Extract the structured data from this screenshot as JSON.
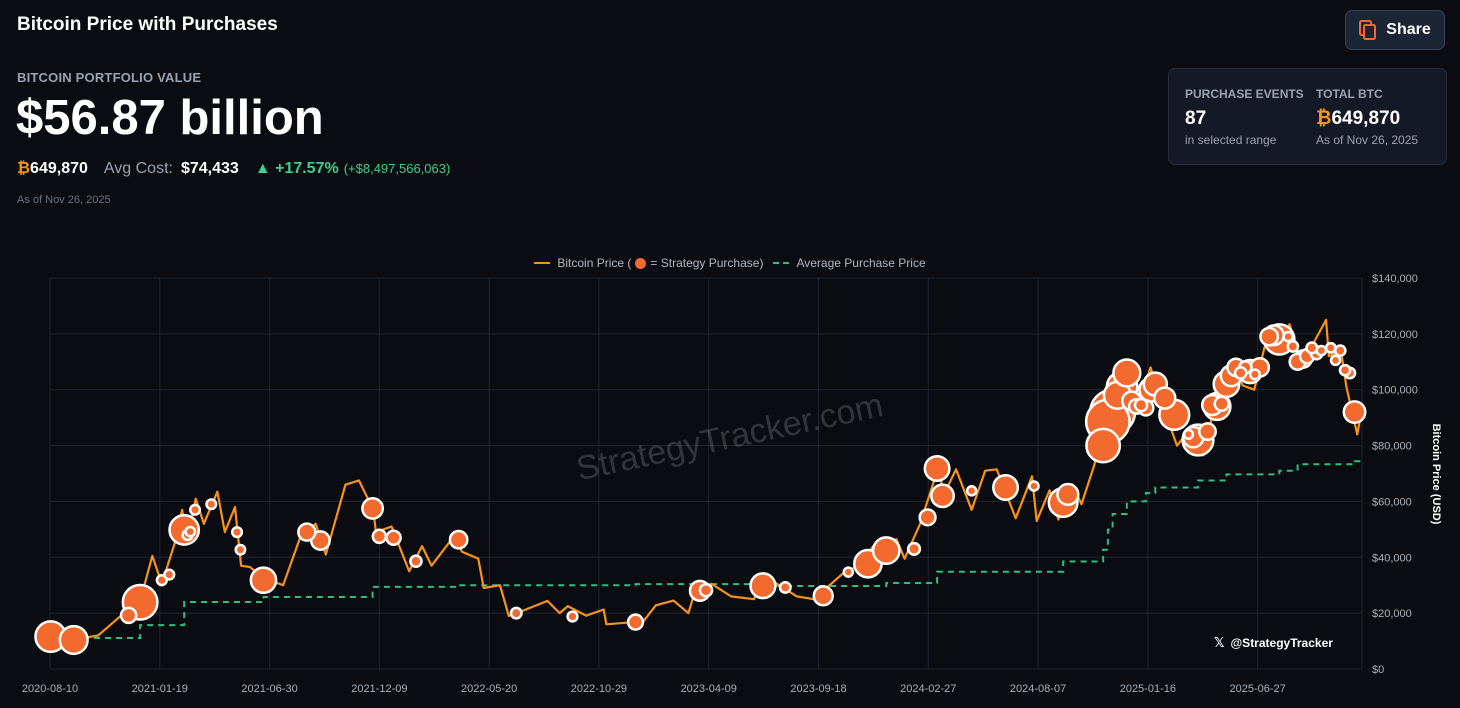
{
  "header": {
    "title": "Bitcoin Price with Purchases",
    "share_label": "Share",
    "share_icon": "copy-icon"
  },
  "summary": {
    "label": "BITCOIN PORTFOLIO VALUE",
    "value": "$56.87 billion",
    "btc_symbol": "₿",
    "btc_holdings": "649,870",
    "avg_cost_label": "Avg Cost:",
    "avg_cost": "$74,433",
    "change_pct": "+17.57%",
    "change_abs": "(+$8,497,566,063)",
    "as_of": "As of Nov 26, 2025"
  },
  "stats_card": {
    "purchase_events_label": "PURCHASE EVENTS",
    "purchase_events": "87",
    "purchase_events_sub": "in selected range",
    "total_btc_label": "TOTAL BTC",
    "total_btc_symbol": "₿",
    "total_btc": "649,870",
    "total_btc_sub": "As of Nov 26, 2025"
  },
  "colors": {
    "background": "#0a0c12",
    "price_line": "#f7931a",
    "purchase_marker": "#f26a2e",
    "average_line": "#2ebd85",
    "positive": "#3ecf8e"
  },
  "chart_data": {
    "type": "line",
    "legend": {
      "position": "top",
      "price_a": "Bitcoin Price (",
      "price_b": "= Strategy Purchase)",
      "average": "Average Purchase Price"
    },
    "ylabel": "Bitcoin Price (USD)",
    "ylim": [
      0,
      140000
    ],
    "xlim": [
      "2020-08-10",
      "2025-11-28"
    ],
    "grid": true,
    "x_ticks": [
      "2020-08-10",
      "2021-01-19",
      "2021-06-30",
      "2021-12-09",
      "2022-05-20",
      "2022-10-29",
      "2023-04-09",
      "2023-09-18",
      "2024-02-27",
      "2024-08-07",
      "2025-01-16",
      "2025-06-27"
    ],
    "y_ticks": [
      "$0",
      "$20,000",
      "$40,000",
      "$60,000",
      "$80,000",
      "$100,000",
      "$120,000",
      "$140,000"
    ],
    "watermark": "StrategyTracker.com",
    "handle": "@StrategyTracker",
    "price": [
      [
        "2020-08-10",
        11500
      ],
      [
        "2020-09-05",
        10200
      ],
      [
        "2020-10-20",
        12000
      ],
      [
        "2020-11-20",
        18500
      ],
      [
        "2020-12-20",
        23500
      ],
      [
        "2021-01-08",
        40500
      ],
      [
        "2021-01-22",
        30500
      ],
      [
        "2021-02-10",
        45000
      ],
      [
        "2021-02-21",
        57000
      ],
      [
        "2021-02-28",
        45000
      ],
      [
        "2021-03-13",
        61000
      ],
      [
        "2021-03-25",
        52000
      ],
      [
        "2021-04-14",
        63500
      ],
      [
        "2021-04-25",
        49000
      ],
      [
        "2021-05-10",
        58000
      ],
      [
        "2021-05-19",
        37000
      ],
      [
        "2021-06-01",
        36500
      ],
      [
        "2021-06-22",
        32500
      ],
      [
        "2021-07-20",
        30000
      ],
      [
        "2021-08-14",
        47000
      ],
      [
        "2021-09-06",
        52000
      ],
      [
        "2021-09-21",
        41000
      ],
      [
        "2021-10-20",
        66000
      ],
      [
        "2021-11-09",
        67500
      ],
      [
        "2021-11-30",
        57000
      ],
      [
        "2021-12-04",
        49000
      ],
      [
        "2021-12-27",
        51000
      ],
      [
        "2022-01-22",
        35000
      ],
      [
        "2022-02-10",
        44000
      ],
      [
        "2022-02-24",
        37000
      ],
      [
        "2022-03-29",
        47500
      ],
      [
        "2022-04-10",
        42000
      ],
      [
        "2022-05-04",
        39500
      ],
      [
        "2022-05-12",
        29000
      ],
      [
        "2022-06-05",
        30000
      ],
      [
        "2022-06-18",
        19000
      ],
      [
        "2022-07-10",
        21000
      ],
      [
        "2022-08-14",
        24400
      ],
      [
        "2022-09-01",
        20000
      ],
      [
        "2022-09-13",
        22500
      ],
      [
        "2022-10-10",
        19100
      ],
      [
        "2022-11-05",
        21300
      ],
      [
        "2022-11-09",
        16000
      ],
      [
        "2022-12-20",
        16800
      ],
      [
        "2023-01-01",
        16600
      ],
      [
        "2023-01-21",
        22800
      ],
      [
        "2023-02-16",
        24500
      ],
      [
        "2023-03-10",
        20000
      ],
      [
        "2023-03-20",
        28000
      ],
      [
        "2023-04-13",
        30500
      ],
      [
        "2023-05-12",
        26000
      ],
      [
        "2023-06-15",
        25000
      ],
      [
        "2023-06-23",
        30700
      ],
      [
        "2023-07-13",
        31400
      ],
      [
        "2023-08-17",
        26000
      ],
      [
        "2023-09-11",
        25000
      ],
      [
        "2023-10-23",
        34000
      ],
      [
        "2023-11-15",
        37000
      ],
      [
        "2023-12-08",
        44000
      ],
      [
        "2024-01-11",
        46500
      ],
      [
        "2024-01-23",
        39500
      ],
      [
        "2024-02-15",
        52000
      ],
      [
        "2024-03-14",
        73000
      ],
      [
        "2024-03-20",
        62000
      ],
      [
        "2024-04-08",
        71500
      ],
      [
        "2024-05-01",
        57000
      ],
      [
        "2024-05-21",
        71000
      ],
      [
        "2024-06-07",
        71500
      ],
      [
        "2024-07-05",
        54000
      ],
      [
        "2024-07-29",
        69000
      ],
      [
        "2024-08-05",
        53000
      ],
      [
        "2024-08-24",
        64000
      ],
      [
        "2024-09-06",
        53500
      ],
      [
        "2024-09-27",
        66000
      ],
      [
        "2024-10-10",
        59000
      ],
      [
        "2024-10-29",
        73000
      ],
      [
        "2024-11-13",
        90000
      ],
      [
        "2024-11-22",
        99000
      ],
      [
        "2024-12-05",
        103000
      ],
      [
        "2024-12-17",
        107000
      ],
      [
        "2024-12-30",
        92000
      ],
      [
        "2025-01-20",
        108000
      ],
      [
        "2025-02-03",
        97000
      ],
      [
        "2025-02-28",
        80000
      ],
      [
        "2025-03-20",
        86000
      ],
      [
        "2025-04-08",
        76500
      ],
      [
        "2025-04-25",
        95000
      ],
      [
        "2025-05-22",
        111000
      ],
      [
        "2025-06-05",
        101500
      ],
      [
        "2025-06-22",
        100000
      ],
      [
        "2025-07-14",
        122000
      ],
      [
        "2025-08-02",
        113000
      ],
      [
        "2025-08-13",
        123500
      ],
      [
        "2025-09-01",
        108000
      ],
      [
        "2025-09-18",
        117000
      ],
      [
        "2025-10-06",
        125000
      ],
      [
        "2025-10-10",
        112000
      ],
      [
        "2025-10-28",
        114000
      ],
      [
        "2025-11-05",
        101000
      ],
      [
        "2025-11-21",
        84000
      ],
      [
        "2025-11-26",
        90500
      ]
    ],
    "average_purchase_price": [
      [
        "2020-08-10",
        11100
      ],
      [
        "2020-12-21",
        15700
      ],
      [
        "2021-02-24",
        24000
      ],
      [
        "2021-06-21",
        25800
      ],
      [
        "2021-11-29",
        29400
      ],
      [
        "2022-04-05",
        30000
      ],
      [
        "2022-12-22",
        30400
      ],
      [
        "2023-06-28",
        29700
      ],
      [
        "2023-12-27",
        30800
      ],
      [
        "2024-03-11",
        34800
      ],
      [
        "2024-09-13",
        38500
      ],
      [
        "2024-11-11",
        42700
      ],
      [
        "2024-11-18",
        49900
      ],
      [
        "2024-11-25",
        55500
      ],
      [
        "2024-12-16",
        60000
      ],
      [
        "2025-01-13",
        63000
      ],
      [
        "2025-01-27",
        65000
      ],
      [
        "2025-03-31",
        67500
      ],
      [
        "2025-05-12",
        69700
      ],
      [
        "2025-07-29",
        71000
      ],
      [
        "2025-08-25",
        73300
      ],
      [
        "2025-11-17",
        74400
      ]
    ],
    "purchases": [
      [
        "2020-08-11",
        11600,
        21454
      ],
      [
        "2020-09-14",
        10400,
        16796
      ],
      [
        "2020-12-04",
        19200,
        2574
      ],
      [
        "2020-12-21",
        23900,
        29646
      ],
      [
        "2021-01-22",
        31800,
        314
      ],
      [
        "2021-02-02",
        33800,
        295
      ],
      [
        "2021-02-24",
        49800,
        19452
      ],
      [
        "2021-03-01",
        48000,
        328
      ],
      [
        "2021-03-05",
        49200,
        205
      ],
      [
        "2021-03-12",
        57000,
        262
      ],
      [
        "2021-04-05",
        59000,
        253
      ],
      [
        "2021-05-13",
        49000,
        271
      ],
      [
        "2021-05-18",
        42700,
        229
      ],
      [
        "2021-06-21",
        31800,
        13005
      ],
      [
        "2021-08-24",
        49000,
        3907
      ],
      [
        "2021-09-13",
        46000,
        5050
      ],
      [
        "2021-11-29",
        57500,
        7002
      ],
      [
        "2021-12-09",
        47500,
        1434
      ],
      [
        "2021-12-30",
        47000,
        1914
      ],
      [
        "2022-02-01",
        38600,
        660
      ],
      [
        "2022-04-05",
        46300,
        4167
      ],
      [
        "2022-06-29",
        20000,
        480
      ],
      [
        "2022-09-20",
        18800,
        301
      ],
      [
        "2022-12-22",
        16800,
        2395
      ],
      [
        "2023-03-27",
        28000,
        6455
      ],
      [
        "2023-04-05",
        28200,
        1045
      ],
      [
        "2023-06-28",
        29800,
        12333
      ],
      [
        "2023-07-31",
        29200,
        467
      ],
      [
        "2023-09-25",
        26200,
        5445
      ],
      [
        "2023-11-01",
        34700,
        155
      ],
      [
        "2023-11-30",
        37700,
        16130
      ],
      [
        "2023-12-27",
        42400,
        14620
      ],
      [
        "2024-02-06",
        43000,
        850
      ],
      [
        "2024-02-26",
        54300,
        3000
      ],
      [
        "2024-03-11",
        71800,
        12000
      ],
      [
        "2024-03-19",
        62000,
        9245
      ],
      [
        "2024-05-01",
        63800,
        164
      ],
      [
        "2024-06-20",
        65000,
        11931
      ],
      [
        "2024-08-01",
        65500,
        169
      ],
      [
        "2024-09-13",
        59600,
        18300
      ],
      [
        "2024-09-20",
        62500,
        7420
      ],
      [
        "2024-11-11",
        80000,
        27200
      ],
      [
        "2024-11-18",
        88600,
        51780
      ],
      [
        "2024-11-25",
        92000,
        55500
      ],
      [
        "2024-12-02",
        98000,
        15400
      ],
      [
        "2024-12-09",
        101000,
        21550
      ],
      [
        "2024-12-16",
        106000,
        15350
      ],
      [
        "2024-12-23",
        96000,
        5262
      ],
      [
        "2024-12-30",
        94000,
        2138
      ],
      [
        "2025-01-06",
        94500,
        1070
      ],
      [
        "2025-01-13",
        93500,
        2530
      ],
      [
        "2025-01-21",
        100000,
        11000
      ],
      [
        "2025-01-27",
        102000,
        10107
      ],
      [
        "2025-02-10",
        97000,
        7633
      ],
      [
        "2025-02-24",
        91000,
        20356
      ],
      [
        "2025-03-17",
        84000,
        130
      ],
      [
        "2025-03-24",
        83000,
        6911
      ],
      [
        "2025-03-31",
        82000,
        22048
      ],
      [
        "2025-04-14",
        85000,
        3459
      ],
      [
        "2025-04-21",
        94500,
        6556
      ],
      [
        "2025-04-28",
        94000,
        15355
      ],
      [
        "2025-05-05",
        95000,
        1895
      ],
      [
        "2025-05-12",
        102000,
        13390
      ],
      [
        "2025-05-19",
        105000,
        7390
      ],
      [
        "2025-05-26",
        108000,
        4020
      ],
      [
        "2025-06-02",
        106000,
        705
      ],
      [
        "2025-06-09",
        108000,
        1045
      ],
      [
        "2025-06-16",
        106500,
        10100
      ],
      [
        "2025-06-23",
        105500,
        245
      ],
      [
        "2025-06-30",
        108000,
        4980
      ],
      [
        "2025-07-14",
        119000,
        4225
      ],
      [
        "2025-07-21",
        119500,
        6220
      ],
      [
        "2025-07-29",
        118000,
        21021
      ],
      [
        "2025-08-11",
        119000,
        155
      ],
      [
        "2025-08-18",
        115500,
        430
      ],
      [
        "2025-08-25",
        110000,
        3081
      ],
      [
        "2025-09-02",
        111000,
        4048
      ],
      [
        "2025-09-08",
        112000,
        1955
      ],
      [
        "2025-09-15",
        115000,
        525
      ],
      [
        "2025-09-22",
        113000,
        850
      ],
      [
        "2025-09-29",
        114000,
        196
      ],
      [
        "2025-10-13",
        115000,
        220
      ],
      [
        "2025-10-20",
        110500,
        168
      ],
      [
        "2025-10-27",
        114000,
        390
      ],
      [
        "2025-11-03",
        107000,
        397
      ],
      [
        "2025-11-10",
        106000,
        487
      ],
      [
        "2025-11-17",
        92000,
        8178
      ]
    ]
  }
}
